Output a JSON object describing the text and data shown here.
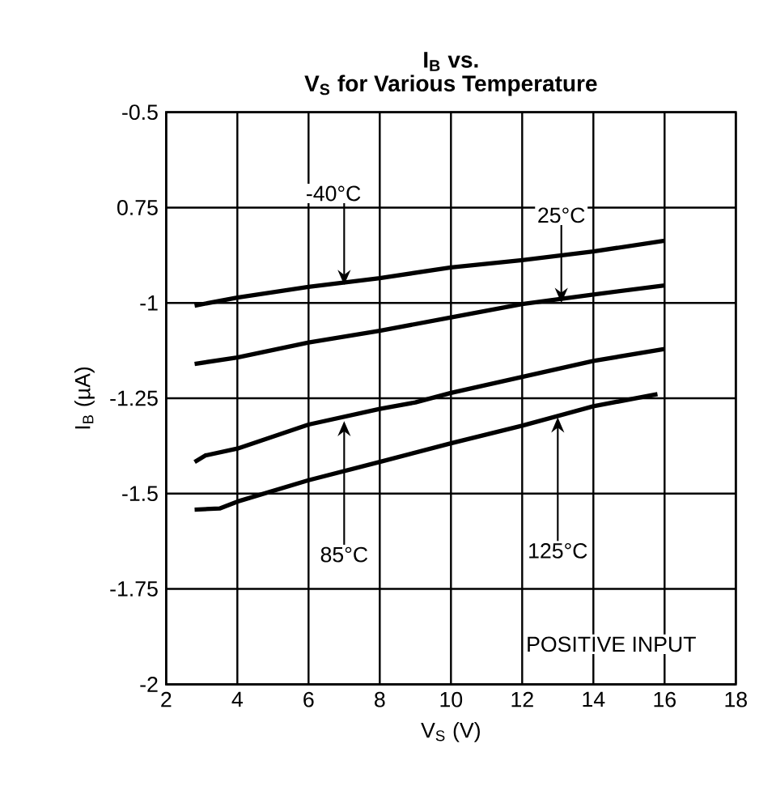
{
  "chart_data": {
    "type": "line",
    "title": "I$_{B}$ vs.",
    "subtitle": "V$_{S}$ for Various Temperature",
    "xlabel": "V$_{S}$ (V)",
    "ylabel": "I$_{B}$ (µA)",
    "xlim": [
      2,
      18
    ],
    "xticks": [
      2,
      4,
      6,
      8,
      10,
      12,
      14,
      16,
      18
    ],
    "ylim": [
      -2,
      -0.5
    ],
    "yticks": [
      -2,
      -1.75,
      -1.5,
      -1.25,
      -1,
      {
        "value": -0.75,
        "label": "0.75"
      },
      -0.5
    ],
    "grid": true,
    "marker": "none",
    "line_style": "solid",
    "series": [
      {
        "color": "#000000",
        "x": [
          2.8,
          4,
          6,
          8,
          10,
          12,
          14,
          16
        ],
        "values": [
          -1.007,
          -0.986,
          -0.958,
          -0.935,
          -0.907,
          -0.888,
          -0.865,
          -0.837
        ]
      },
      {
        "color": "#000000",
        "x": [
          2.8,
          4,
          6,
          8,
          10,
          12,
          14,
          16
        ],
        "values": [
          -1.16,
          -1.143,
          -1.104,
          -1.073,
          -1.038,
          -1.003,
          -0.978,
          -0.954
        ]
      },
      {
        "color": "#000000",
        "x": [
          2.8,
          3.1,
          4,
          6,
          8,
          9,
          10,
          12,
          14,
          16
        ],
        "values": [
          -1.417,
          -1.4,
          -1.382,
          -1.319,
          -1.278,
          -1.261,
          -1.236,
          -1.194,
          -1.152,
          -1.121
        ]
      },
      {
        "color": "#000000",
        "x": [
          2.8,
          3.5,
          4,
          6,
          8,
          10,
          12,
          14,
          15.8
        ],
        "values": [
          -1.542,
          -1.539,
          -1.521,
          -1.465,
          -1.417,
          -1.368,
          -1.322,
          -1.271,
          -1.239
        ]
      }
    ],
    "annotations": [
      {
        "text": "-40°C",
        "x": 7,
        "y": -0.953
      },
      {
        "text": "25°C",
        "x": 13.1,
        "y": -1.0
      },
      {
        "text": "85°C",
        "x": 7,
        "y": -1.31
      },
      {
        "text": "125°C",
        "x": 13,
        "y": -1.3
      },
      "POSITIVE INPUT"
    ]
  }
}
